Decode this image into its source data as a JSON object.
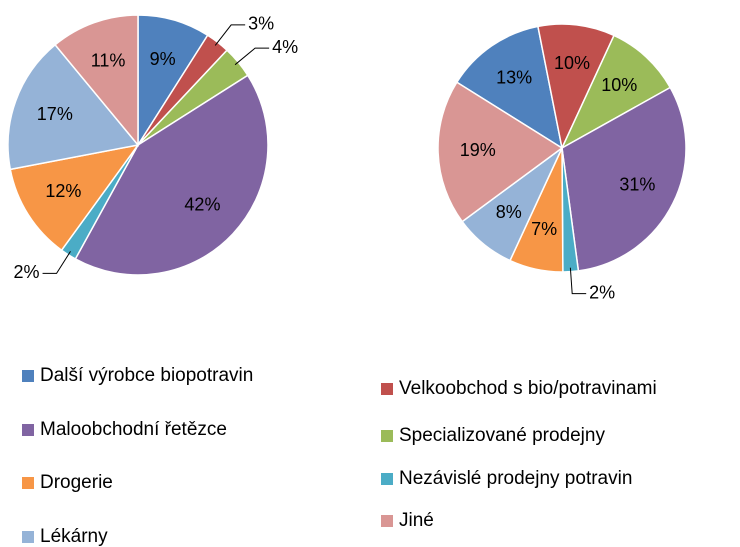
{
  "chart_data": [
    {
      "type": "pie",
      "categories": [
        "Další výrobce biopotravin",
        "Velkoobchod s bio/potravinami",
        "Specializované prodejny",
        "Maloobchodní řetězce",
        "Nezávislé prodejny potravin",
        "Drogerie",
        "Lékárny",
        "Jiné"
      ],
      "values": [
        9,
        3,
        4,
        42,
        2,
        12,
        17,
        11
      ],
      "value_labels": [
        "9%",
        "3%",
        "4%",
        "42%",
        "2%",
        "12%",
        "17%",
        "11%"
      ],
      "colors": [
        "#4f81bd",
        "#c0504d",
        "#9bbb59",
        "#8064a2",
        "#4bacc6",
        "#f79646",
        "#95b3d7",
        "#d99694"
      ]
    },
    {
      "type": "pie",
      "categories": [
        "Další výrobce biopotravin",
        "Velkoobchod s bio/potravinami",
        "Specializované prodejny",
        "Maloobchodní řetězce",
        "Nezávislé prodejny potravin",
        "Drogerie",
        "Lékárny",
        "Jiné"
      ],
      "values": [
        13,
        10,
        10,
        31,
        2,
        7,
        8,
        19
      ],
      "value_labels": [
        "13%",
        "10%",
        "10%",
        "31%",
        "2%",
        "7%",
        "8%",
        "19%"
      ],
      "colors": [
        "#4f81bd",
        "#c0504d",
        "#9bbb59",
        "#8064a2",
        "#4bacc6",
        "#f79646",
        "#95b3d7",
        "#d99694"
      ]
    }
  ]
}
